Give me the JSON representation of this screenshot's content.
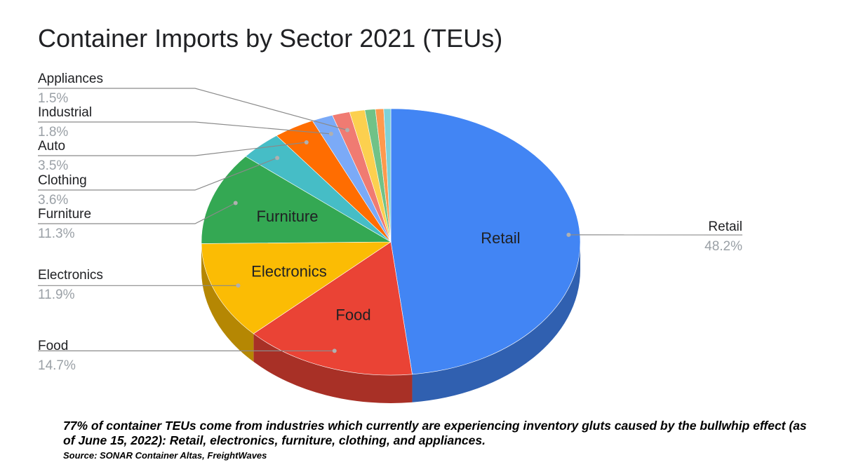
{
  "chart_data": {
    "type": "pie",
    "title": "Container Imports by Sector 2021 (TEUs)",
    "style": "3d",
    "slices": [
      {
        "label": "Retail",
        "value": 48.2,
        "pct_label": "48.2%",
        "color": "#4285f4",
        "inner_label": "Retail"
      },
      {
        "label": "Food",
        "value": 14.7,
        "pct_label": "14.7%",
        "color": "#ea4335",
        "inner_label": "Food"
      },
      {
        "label": "Electronics",
        "value": 11.9,
        "pct_label": "11.9%",
        "color": "#fbbc04",
        "inner_label": "Electronics"
      },
      {
        "label": "Furniture",
        "value": 11.3,
        "pct_label": "11.3%",
        "color": "#34a853",
        "inner_label": "Furniture"
      },
      {
        "label": "Clothing",
        "value": 3.6,
        "pct_label": "3.6%",
        "color": "#46bdc6",
        "inner_label": ""
      },
      {
        "label": "Auto",
        "value": 3.5,
        "pct_label": "3.5%",
        "color": "#ff6d01",
        "inner_label": ""
      },
      {
        "label": "Industrial",
        "value": 1.8,
        "pct_label": "1.8%",
        "color": "#7baaf7",
        "inner_label": ""
      },
      {
        "label": "Appliances",
        "value": 1.5,
        "pct_label": "1.5%",
        "color": "#f07b72",
        "inner_label": ""
      },
      {
        "label": "",
        "value": 1.3,
        "pct_label": "",
        "color": "#fcd04f",
        "inner_label": ""
      },
      {
        "label": "",
        "value": 0.9,
        "pct_label": "",
        "color": "#71c287",
        "inner_label": ""
      },
      {
        "label": "",
        "value": 0.7,
        "pct_label": "",
        "color": "#ff994d",
        "inner_label": ""
      },
      {
        "label": "",
        "value": 0.6,
        "pct_label": "",
        "color": "#7ed1d7",
        "inner_label": ""
      }
    ]
  },
  "caption": "77% of container TEUs come from industries which currently are experiencing inventory gluts caused by the bullwhip effect (as of June 15, 2022): Retail, electronics, furniture, clothing, and appliances.",
  "source": "Source: SONAR Container Altas, FreightWaves"
}
